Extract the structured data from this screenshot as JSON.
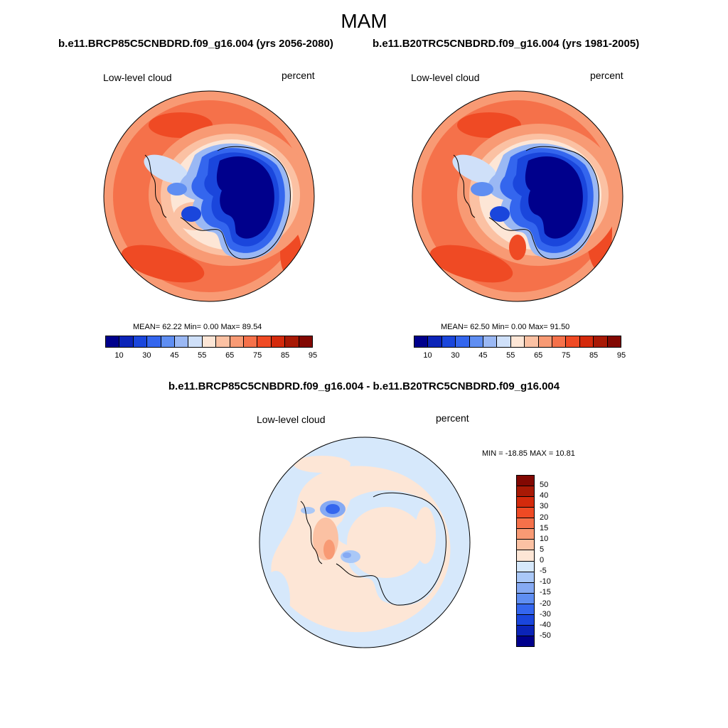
{
  "figure": {
    "title": "MAM",
    "case1_title": "b.e11.BRCP85C5CNBDRD.f09_g16.004 (yrs 2056-2080)",
    "case2_title": "b.e11.B20TRC5CNBDRD.f09_g16.004 (yrs 1981-2005)",
    "diff_title": "b.e11.BRCP85C5CNBDRD.f09_g16.004 - b.e11.B20TRC5CNBDRD.f09_g16.004"
  },
  "panels": [
    {
      "left_label": "Low-level cloud",
      "right_label": "percent",
      "stats": "MEAN=  62.22  Min=   0.00  Max=  89.54",
      "colorbar_ticks": [
        "10",
        "30",
        "45",
        "55",
        "65",
        "75",
        "85",
        "95"
      ]
    },
    {
      "left_label": "Low-level cloud",
      "right_label": "percent",
      "stats": "MEAN=  62.50  Min=   0.00  Max=  91.50",
      "colorbar_ticks": [
        "10",
        "30",
        "45",
        "55",
        "65",
        "75",
        "85",
        "95"
      ]
    },
    {
      "left_label": "Low-level cloud",
      "right_label": "percent",
      "stats": "MIN = -18.85 MAX =  10.81",
      "colorbar_ticks": [
        "50",
        "40",
        "30",
        "20",
        "15",
        "10",
        "5",
        "0",
        "-5",
        "-10",
        "-15",
        "-20",
        "-30",
        "-40",
        "-50"
      ]
    }
  ],
  "colors": {
    "field_levels": [
      "#00008c",
      "#0b24b8",
      "#1a46dc",
      "#3466ee",
      "#5f8ef2",
      "#9ab8f4",
      "#cfe0f9",
      "#fde6d6",
      "#fbc1a3",
      "#f89a74",
      "#f5714a",
      "#ef4a24",
      "#d42a0c",
      "#a81905",
      "#820802"
    ],
    "diff_levels": [
      "#820802",
      "#a81905",
      "#d42a0c",
      "#ef4a24",
      "#f5714a",
      "#f89a74",
      "#fbc1a3",
      "#fde6d6",
      "#d6e8fb",
      "#aac8f7",
      "#86aaf3",
      "#5f8ef2",
      "#3466ee",
      "#1a46dc",
      "#0b24b8",
      "#00008c"
    ]
  }
}
